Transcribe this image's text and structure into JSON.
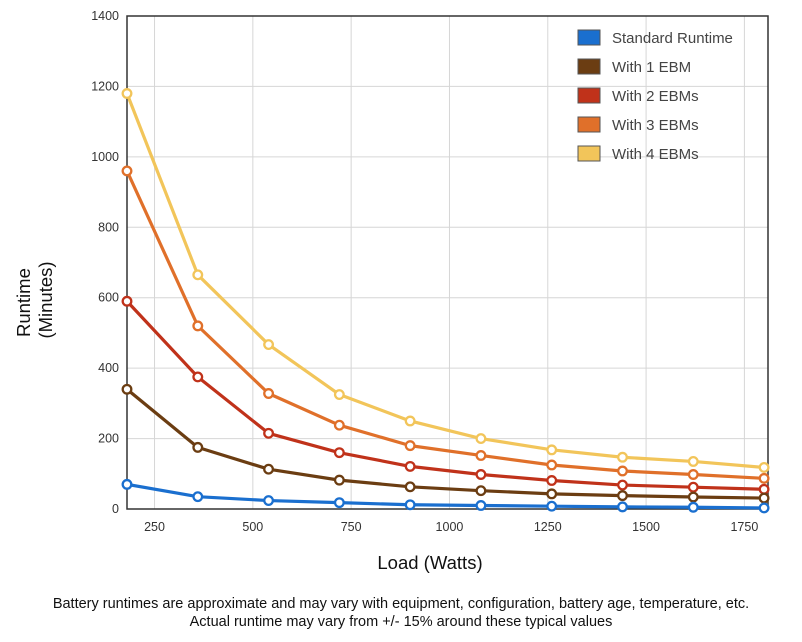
{
  "chart_data": {
    "type": "line",
    "title": "",
    "xlabel": "Load (Watts)",
    "ylabel_lines": [
      "Runtime",
      "(Minutes)"
    ],
    "xlim": [
      180,
      1810
    ],
    "ylim": [
      0,
      1400
    ],
    "xticks": [
      250,
      500,
      750,
      1000,
      1250,
      1500,
      1750
    ],
    "yticks": [
      0,
      200,
      400,
      600,
      800,
      1000,
      1200,
      1400
    ],
    "legend_position": "top-right",
    "grid": true,
    "series": [
      {
        "name": "Standard Runtime",
        "color": "#1a6fcf",
        "x": [
          180,
          360,
          540,
          720,
          900,
          1080,
          1260,
          1440,
          1620,
          1800
        ],
        "y": [
          70,
          35,
          24,
          18,
          12,
          10,
          8,
          6,
          5,
          3
        ]
      },
      {
        "name": "With 1 EBM",
        "color": "#6b3d12",
        "x": [
          180,
          360,
          540,
          720,
          900,
          1080,
          1260,
          1440,
          1620,
          1800
        ],
        "y": [
          340,
          175,
          113,
          82,
          63,
          52,
          43,
          38,
          34,
          31
        ]
      },
      {
        "name": "With 2 EBMs",
        "color": "#c0321a",
        "x": [
          180,
          360,
          540,
          720,
          900,
          1080,
          1260,
          1440,
          1620,
          1800
        ],
        "y": [
          590,
          375,
          215,
          160,
          121,
          98,
          81,
          68,
          62,
          56
        ]
      },
      {
        "name": "With 3 EBMs",
        "color": "#e0702a",
        "x": [
          180,
          360,
          540,
          720,
          900,
          1080,
          1260,
          1440,
          1620,
          1800
        ],
        "y": [
          960,
          520,
          328,
          238,
          180,
          152,
          125,
          108,
          98,
          87
        ]
      },
      {
        "name": "With 4 EBMs",
        "color": "#f2c55a",
        "x": [
          180,
          360,
          540,
          720,
          900,
          1080,
          1260,
          1440,
          1620,
          1800
        ],
        "y": [
          1180,
          665,
          467,
          325,
          250,
          200,
          168,
          147,
          135,
          118
        ]
      }
    ]
  },
  "footnote": {
    "line1": "Battery runtimes are approximate and may vary with equipment, configuration, battery age, temperature, etc.",
    "line2": "Actual runtime may vary from +/- 15% around these typical values"
  }
}
